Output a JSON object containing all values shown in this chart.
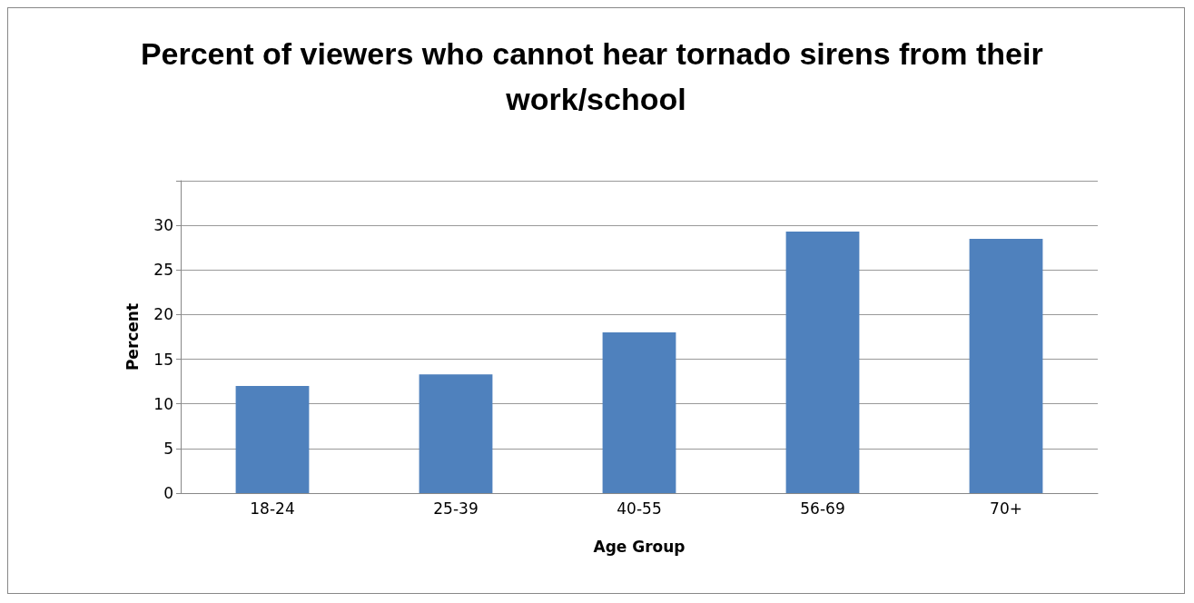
{
  "chart_data": {
    "type": "bar",
    "title": "Percent of viewers who cannot hear tornado sirens from their work/school",
    "xlabel": "Age Group",
    "ylabel": "Percent",
    "categories": [
      "18-24",
      "25-39",
      "40-55",
      "56-69",
      "70+"
    ],
    "values": [
      12,
      13.3,
      18,
      29.3,
      28.5
    ],
    "color": "#4f81bd",
    "ylim": [
      0,
      35
    ],
    "yticks": [
      0,
      5,
      10,
      15,
      20,
      25,
      30,
      {
        "value": 35,
        "label": null
      }
    ],
    "grid": true
  }
}
